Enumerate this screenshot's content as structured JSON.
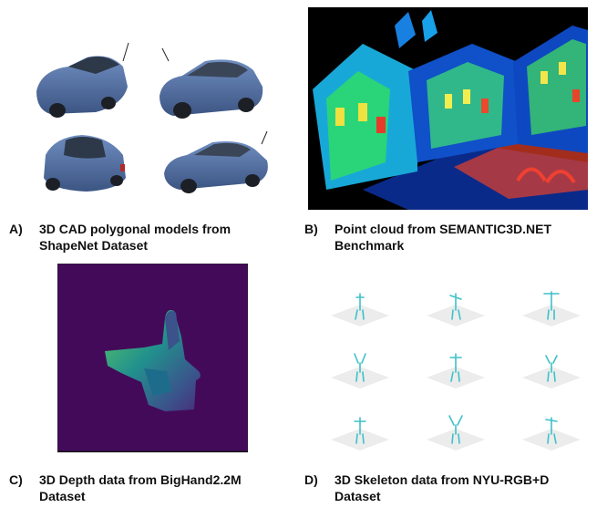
{
  "panels": {
    "a": {
      "letter": "A)",
      "caption": "3D CAD polygonal models from ShapeNet Dataset"
    },
    "b": {
      "letter": "B)",
      "caption": "Point cloud from SEMANTIC3D.NET Benchmark"
    },
    "c": {
      "letter": "C)",
      "caption": "3D Depth data from BigHand2.2M Dataset"
    },
    "d": {
      "letter": "D)",
      "caption": "3D Skeleton data from NYU-RGB+D Dataset"
    }
  },
  "colors": {
    "car_body": "#4f6fa3",
    "depth_background": "#440a5a",
    "skeleton": "#3ec1c9",
    "pointcloud_bg": "#000000"
  }
}
